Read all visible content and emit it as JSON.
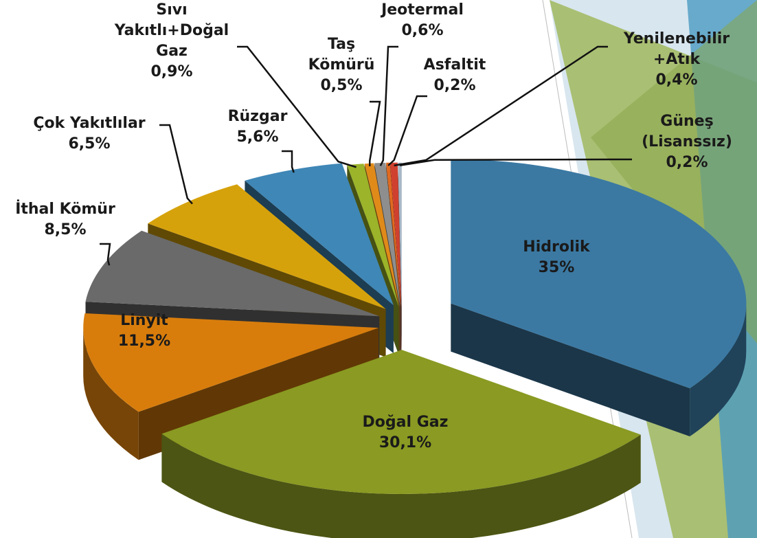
{
  "chart_data": {
    "type": "pie3d",
    "categories": [
      "Hidrolik",
      "Doğal Gaz",
      "Linyit",
      "İthal Kömür",
      "Çok Yakıtlılar",
      "Rüzgar",
      "Sıvı Yakıtlı+Doğal Gaz",
      "Taş Kömürü",
      "Jeotermal",
      "Asfaltit",
      "Yenilenebilir +Atık",
      "Güneş (Lisanssız)"
    ],
    "values": [
      35,
      30.1,
      11.5,
      8.5,
      6.5,
      5.6,
      0.9,
      0.5,
      0.6,
      0.2,
      0.4,
      0.2
    ],
    "value_labels": [
      "35%",
      "30,1%",
      "11,5%",
      "8,5%",
      "6,5%",
      "5,6%",
      "0,9%",
      "0,5%",
      "0,6%",
      "0,2%",
      "0,4%",
      "0,2%"
    ],
    "colors": [
      "#3b79a3",
      "#8a9a22",
      "#d87d0c",
      "#6a6a6a",
      "#d6a20c",
      "#3f87b6",
      "#9bb42a",
      "#e08a1a",
      "#8e8e8e",
      "#e06a20",
      "#d0402e",
      "#a8b8c8"
    ]
  }
}
